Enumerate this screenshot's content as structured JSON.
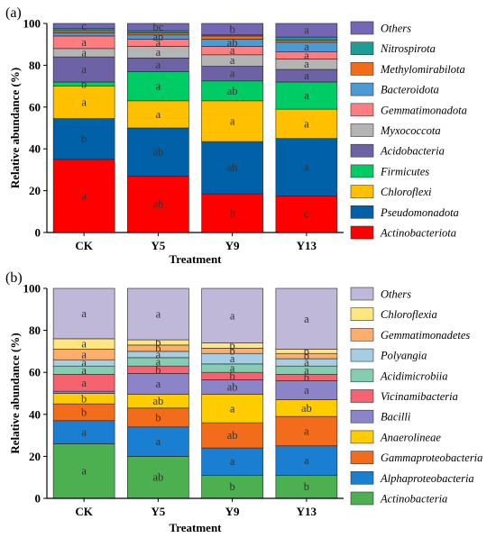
{
  "chart_data": [
    {
      "panel_label": "(a)",
      "type": "bar",
      "stacked": true,
      "xlabel": "Treatment",
      "ylabel": "Relative abundance (%)",
      "ylim": [
        0,
        100
      ],
      "yticks": [
        0,
        20,
        40,
        60,
        80,
        100
      ],
      "categories": [
        "CK",
        "Y5",
        "Y9",
        "Y13"
      ],
      "series": [
        {
          "name": "Actinobacteriota",
          "color": "#ff0000",
          "values": [
            35.0,
            27.0,
            18.5,
            17.5
          ],
          "letters": [
            "a",
            "ab",
            "b",
            "c"
          ]
        },
        {
          "name": "Pseudomonadota",
          "color": "#0061a8",
          "values": [
            19.5,
            23.0,
            25.0,
            27.5
          ],
          "letters": [
            "b",
            "ab",
            "ab",
            "a"
          ]
        },
        {
          "name": "Chloroflexi",
          "color": "#ffc000",
          "values": [
            15.5,
            13.0,
            19.5,
            14.0
          ],
          "letters": [
            "a",
            "a",
            "a",
            "a"
          ]
        },
        {
          "name": "Firmicutes",
          "color": "#00cc66",
          "values": [
            2.0,
            14.0,
            9.5,
            13.0
          ],
          "letters": [
            "b",
            "a",
            "ab",
            "a"
          ]
        },
        {
          "name": "Acidobacteria",
          "color": "#6e62a6",
          "values": [
            12.0,
            6.5,
            7.0,
            6.0
          ],
          "letters": [
            "a",
            "a",
            "a",
            "a"
          ]
        },
        {
          "name": "Myxococcota",
          "color": "#b4b4b4",
          "values": [
            4.0,
            5.5,
            5.5,
            5.0
          ],
          "letters": [
            "a",
            "a",
            "a",
            "a"
          ]
        },
        {
          "name": "Gemmatimonadota",
          "color": "#ff7c80",
          "values": [
            6.0,
            3.5,
            4.0,
            3.5
          ],
          "letters": [
            "a",
            "a",
            "a",
            "a"
          ]
        },
        {
          "name": "Bacteroidota",
          "color": "#4a9ad4",
          "values": [
            1.5,
            2.0,
            3.5,
            4.5
          ],
          "letters": [
            "",
            "ab",
            "ab",
            "a"
          ]
        },
        {
          "name": "Methylomirabilota",
          "color": "#f26c1c",
          "values": [
            1.0,
            1.0,
            1.5,
            1.0
          ],
          "letters": [
            "",
            "",
            "",
            ""
          ]
        },
        {
          "name": "Nitrospirota",
          "color": "#1a9e96",
          "values": [
            1.0,
            1.0,
            0.5,
            1.5
          ],
          "letters": [
            "",
            "",
            "",
            ""
          ]
        },
        {
          "name": "Others",
          "color": "#7566b5",
          "values": [
            2.5,
            3.5,
            5.5,
            6.5
          ],
          "letters": [
            "c",
            "bc",
            "b",
            "a"
          ]
        }
      ]
    },
    {
      "panel_label": "(b)",
      "type": "bar",
      "stacked": true,
      "xlabel": "Treatment",
      "ylabel": "Relative abundance (%)",
      "ylim": [
        0,
        100
      ],
      "yticks": [
        0,
        20,
        40,
        60,
        80,
        100
      ],
      "categories": [
        "CK",
        "Y5",
        "Y9",
        "Y13"
      ],
      "series": [
        {
          "name": "Actinobacteria",
          "color": "#4caf50",
          "values": [
            26.0,
            20.0,
            11.0,
            11.0
          ],
          "letters": [
            "a",
            "ab",
            "b",
            "b"
          ]
        },
        {
          "name": "Alphaproteobacteria",
          "color": "#1a7fd0",
          "values": [
            11.0,
            14.0,
            13.0,
            14.0
          ],
          "letters": [
            "a",
            "a",
            "a",
            "a"
          ]
        },
        {
          "name": "Gammaproteobacteria",
          "color": "#f26c1c",
          "values": [
            8.0,
            9.0,
            12.0,
            14.0
          ],
          "letters": [
            "b",
            "b",
            "ab",
            "a"
          ]
        },
        {
          "name": "Anaerolineae",
          "color": "#ffcc00",
          "values": [
            5.0,
            6.5,
            13.5,
            8.0
          ],
          "letters": [
            "b",
            "ab",
            "a",
            "ab"
          ]
        },
        {
          "name": "Bacilli",
          "color": "#8c84c8",
          "values": [
            1.0,
            10.0,
            7.0,
            9.0
          ],
          "letters": [
            "b",
            "a",
            "ab",
            "a"
          ]
        },
        {
          "name": "Vicinamibacteria",
          "color": "#f4636f",
          "values": [
            8.0,
            3.5,
            3.5,
            3.0
          ],
          "letters": [
            "a",
            "b",
            "b",
            "b"
          ]
        },
        {
          "name": "Acidimicrobiia",
          "color": "#86ccb0",
          "values": [
            4.0,
            4.0,
            4.0,
            4.0
          ],
          "letters": [
            "a",
            "a",
            "a",
            "a"
          ]
        },
        {
          "name": "Polyangia",
          "color": "#a6cee3",
          "values": [
            3.0,
            3.0,
            5.0,
            3.5
          ],
          "letters": [
            "a",
            "a",
            "a",
            "a"
          ]
        },
        {
          "name": "Gemmatimonadetes",
          "color": "#fdae6b",
          "values": [
            5.0,
            3.0,
            2.5,
            2.5
          ],
          "letters": [
            "a",
            "b",
            "b",
            "b"
          ]
        },
        {
          "name": "Chloroflexia",
          "color": "#ffe680",
          "values": [
            5.0,
            2.5,
            2.5,
            2.0
          ],
          "letters": [
            "a",
            "b",
            "b",
            "b"
          ]
        },
        {
          "name": "Others",
          "color": "#bfb8d8",
          "values": [
            24.0,
            24.5,
            26.0,
            29.0
          ],
          "letters": [
            "a",
            "a",
            "a",
            "a"
          ]
        }
      ]
    }
  ]
}
